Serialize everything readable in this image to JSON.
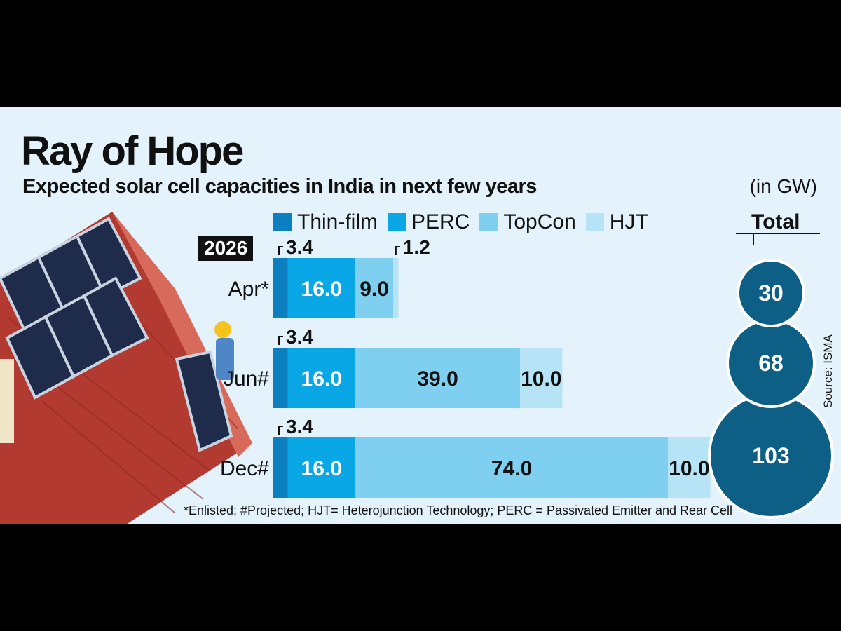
{
  "title": "Ray of Hope",
  "subtitle": "Expected solar cell capacities in India in next few years",
  "unit": "(in GW)",
  "total_label": "Total",
  "year_badge": "2026",
  "footnote": "*Enlisted; #Projected;  HJT= Heterojunction Technology; PERC = Passivated Emitter and Rear Cell",
  "source": "Source: ISMA",
  "colors": {
    "background": "#e4f3fb",
    "Thin-film": "#0c7fc0",
    "PERC": "#0aa7e6",
    "TopCon": "#7fcff0",
    "HJT": "#b7e3f6",
    "bubble": "#0d5f86"
  },
  "chart_data": {
    "type": "bar",
    "orientation": "horizontal",
    "stacked": true,
    "categories": [
      "Apr*",
      "Jun#",
      "Dec#"
    ],
    "series": [
      {
        "name": "Thin-film",
        "values": [
          3.4,
          3.4,
          3.4
        ]
      },
      {
        "name": "PERC",
        "values": [
          16.0,
          16.0,
          16.0
        ]
      },
      {
        "name": "TopCon",
        "values": [
          9.0,
          39.0,
          74.0
        ]
      },
      {
        "name": "HJT",
        "values": [
          1.2,
          10.0,
          10.0
        ]
      }
    ],
    "value_labels": [
      [
        "3.4",
        "16.0",
        "9.0",
        "1.2"
      ],
      [
        "3.4",
        "16.0",
        "39.0",
        "10.0"
      ],
      [
        "3.4",
        "16.0",
        "74.0",
        "10.0"
      ]
    ],
    "totals": [
      30,
      68,
      103
    ],
    "legend_position": "top",
    "grid": false
  }
}
